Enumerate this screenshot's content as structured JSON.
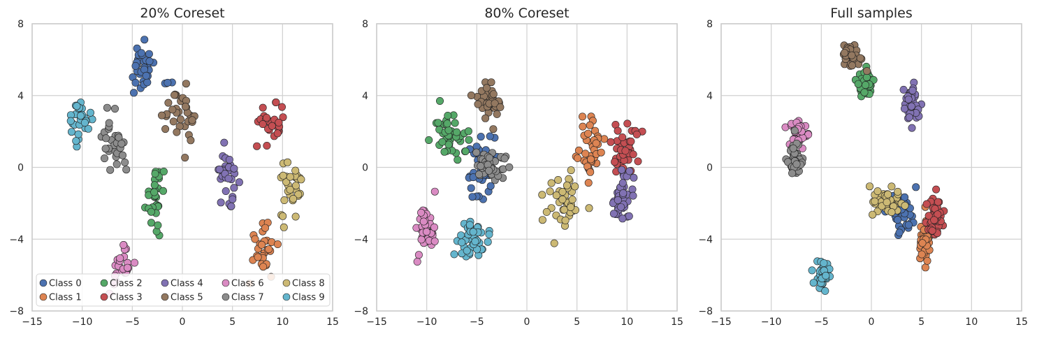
{
  "chart_data": [
    {
      "type": "scatter",
      "title": "20% Coreset",
      "xlabel": "",
      "ylabel": "",
      "xlim": [
        -15,
        15
      ],
      "ylim": [
        -8,
        8
      ],
      "xticks": [
        -15,
        -10,
        -5,
        0,
        5,
        10,
        15
      ],
      "yticks": [
        -8,
        -4,
        0,
        4,
        8
      ],
      "grid": true,
      "legend": {
        "placement": "lower-left",
        "columns": 5
      },
      "series": [
        {
          "name": "Class 0",
          "color": "#4c72b0",
          "clusters": [
            {
              "cx": -4.1,
              "cy": 5.4,
              "sx": 0.65,
              "sy": 0.7,
              "n": 32
            },
            {
              "cx": -1.3,
              "cy": 4.7,
              "sx": 0.3,
              "sy": 0.15,
              "n": 4
            }
          ]
        },
        {
          "name": "Class 1",
          "color": "#dd8452",
          "clusters": [
            {
              "cx": 8.0,
              "cy": -4.4,
              "sx": 0.65,
              "sy": 0.75,
              "n": 30
            }
          ]
        },
        {
          "name": "Class 2",
          "color": "#55a868",
          "clusters": [
            {
              "cx": -2.6,
              "cy": -1.4,
              "sx": 0.55,
              "sy": 0.9,
              "n": 32
            }
          ]
        },
        {
          "name": "Class 3",
          "color": "#c44e52",
          "clusters": [
            {
              "cx": 9.0,
              "cy": 2.4,
              "sx": 0.6,
              "sy": 0.6,
              "n": 28
            }
          ]
        },
        {
          "name": "Class 4",
          "color": "#8172b3",
          "clusters": [
            {
              "cx": 4.5,
              "cy": -0.4,
              "sx": 0.6,
              "sy": 0.65,
              "n": 30
            }
          ]
        },
        {
          "name": "Class 5",
          "color": "#937860",
          "clusters": [
            {
              "cx": -0.4,
              "cy": 2.9,
              "sx": 0.75,
              "sy": 0.75,
              "n": 32
            }
          ]
        },
        {
          "name": "Class 6",
          "color": "#da8bc3",
          "clusters": [
            {
              "cx": -6.1,
              "cy": -5.6,
              "sx": 0.6,
              "sy": 0.5,
              "n": 26
            }
          ]
        },
        {
          "name": "Class 7",
          "color": "#8c8c8c",
          "clusters": [
            {
              "cx": -6.8,
              "cy": 1.3,
              "sx": 0.9,
              "sy": 0.9,
              "n": 30
            }
          ]
        },
        {
          "name": "Class 8",
          "color": "#ccb974",
          "clusters": [
            {
              "cx": 10.9,
              "cy": -1.6,
              "sx": 0.6,
              "sy": 0.85,
              "n": 30
            }
          ]
        },
        {
          "name": "Class 9",
          "color": "#64b5cd",
          "clusters": [
            {
              "cx": -10.2,
              "cy": 2.9,
              "sx": 0.55,
              "sy": 0.5,
              "n": 26
            },
            {
              "cx": -10.4,
              "cy": 1.4,
              "sx": 0.25,
              "sy": 0.25,
              "n": 4
            }
          ]
        }
      ]
    },
    {
      "type": "scatter",
      "title": "80% Coreset",
      "xlabel": "",
      "ylabel": "",
      "xlim": [
        -15,
        15
      ],
      "ylim": [
        -8,
        8
      ],
      "xticks": [
        -15,
        -10,
        -5,
        0,
        5,
        10,
        15
      ],
      "yticks": [
        -8,
        -4,
        0,
        4,
        8
      ],
      "grid": true,
      "series": [
        {
          "name": "Class 0",
          "color": "#4c72b0",
          "clusters": [
            {
              "cx": -4.6,
              "cy": 0.1,
              "sx": 0.7,
              "sy": 0.95,
              "n": 40
            }
          ]
        },
        {
          "name": "Class 1",
          "color": "#dd8452",
          "clusters": [
            {
              "cx": 6.5,
              "cy": 1.0,
              "sx": 0.55,
              "sy": 0.8,
              "n": 40
            }
          ]
        },
        {
          "name": "Class 2",
          "color": "#55a868",
          "clusters": [
            {
              "cx": -7.8,
              "cy": 1.8,
              "sx": 0.85,
              "sy": 0.6,
              "n": 40
            }
          ]
        },
        {
          "name": "Class 3",
          "color": "#c44e52",
          "clusters": [
            {
              "cx": 9.8,
              "cy": 1.0,
              "sx": 0.7,
              "sy": 0.75,
              "n": 40
            }
          ]
        },
        {
          "name": "Class 4",
          "color": "#8172b3",
          "clusters": [
            {
              "cx": 9.6,
              "cy": -1.6,
              "sx": 0.55,
              "sy": 0.7,
              "n": 40
            }
          ]
        },
        {
          "name": "Class 5",
          "color": "#937860",
          "clusters": [
            {
              "cx": -3.9,
              "cy": 3.8,
              "sx": 0.65,
              "sy": 0.55,
              "n": 40
            }
          ]
        },
        {
          "name": "Class 6",
          "color": "#da8bc3",
          "clusters": [
            {
              "cx": -10.2,
              "cy": -3.3,
              "sx": 0.5,
              "sy": 0.8,
              "n": 40
            }
          ]
        },
        {
          "name": "Class 7",
          "color": "#8c8c8c",
          "clusters": [
            {
              "cx": -3.6,
              "cy": 0.2,
              "sx": 0.85,
              "sy": 0.55,
              "n": 40
            }
          ]
        },
        {
          "name": "Class 8",
          "color": "#ccb974",
          "clusters": [
            {
              "cx": 3.7,
              "cy": -2.0,
              "sx": 0.8,
              "sy": 0.8,
              "n": 40
            }
          ]
        },
        {
          "name": "Class 9",
          "color": "#64b5cd",
          "clusters": [
            {
              "cx": -5.4,
              "cy": -4.0,
              "sx": 0.75,
              "sy": 0.55,
              "n": 40
            }
          ]
        }
      ]
    },
    {
      "type": "scatter",
      "title": "Full samples",
      "xlabel": "",
      "ylabel": "",
      "xlim": [
        -15,
        15
      ],
      "ylim": [
        -8,
        8
      ],
      "xticks": [
        -15,
        -10,
        -5,
        0,
        5,
        10,
        15
      ],
      "yticks": [
        -8,
        -4,
        0,
        4,
        8
      ],
      "grid": true,
      "series": [
        {
          "name": "Class 0",
          "color": "#4c72b0",
          "clusters": [
            {
              "cx": 3.0,
              "cy": -2.5,
              "sx": 0.6,
              "sy": 0.6,
              "n": 45
            }
          ]
        },
        {
          "name": "Class 1",
          "color": "#dd8452",
          "clusters": [
            {
              "cx": 5.4,
              "cy": -4.0,
              "sx": 0.35,
              "sy": 0.6,
              "n": 45
            }
          ]
        },
        {
          "name": "Class 2",
          "color": "#55a868",
          "clusters": [
            {
              "cx": -0.6,
              "cy": 4.6,
              "sx": 0.45,
              "sy": 0.45,
              "n": 45
            }
          ]
        },
        {
          "name": "Class 3",
          "color": "#c44e52",
          "clusters": [
            {
              "cx": 6.3,
              "cy": -2.7,
              "sx": 0.4,
              "sy": 0.55,
              "n": 45
            }
          ]
        },
        {
          "name": "Class 4",
          "color": "#8172b3",
          "clusters": [
            {
              "cx": 4.0,
              "cy": 3.5,
              "sx": 0.35,
              "sy": 0.55,
              "n": 45
            }
          ]
        },
        {
          "name": "Class 5",
          "color": "#937860",
          "clusters": [
            {
              "cx": -1.9,
              "cy": 6.2,
              "sx": 0.45,
              "sy": 0.35,
              "n": 45
            }
          ]
        },
        {
          "name": "Class 6",
          "color": "#da8bc3",
          "clusters": [
            {
              "cx": -7.2,
              "cy": 1.9,
              "sx": 0.5,
              "sy": 0.4,
              "n": 45
            }
          ]
        },
        {
          "name": "Class 7",
          "color": "#8c8c8c",
          "clusters": [
            {
              "cx": -7.6,
              "cy": 0.3,
              "sx": 0.35,
              "sy": 0.55,
              "n": 45
            }
          ]
        },
        {
          "name": "Class 8",
          "color": "#ccb974",
          "clusters": [
            {
              "cx": 1.5,
              "cy": -2.0,
              "sx": 0.85,
              "sy": 0.35,
              "n": 45
            }
          ]
        },
        {
          "name": "Class 9",
          "color": "#64b5cd",
          "clusters": [
            {
              "cx": -4.9,
              "cy": -6.1,
              "sx": 0.35,
              "sy": 0.45,
              "n": 45
            }
          ]
        }
      ]
    }
  ]
}
